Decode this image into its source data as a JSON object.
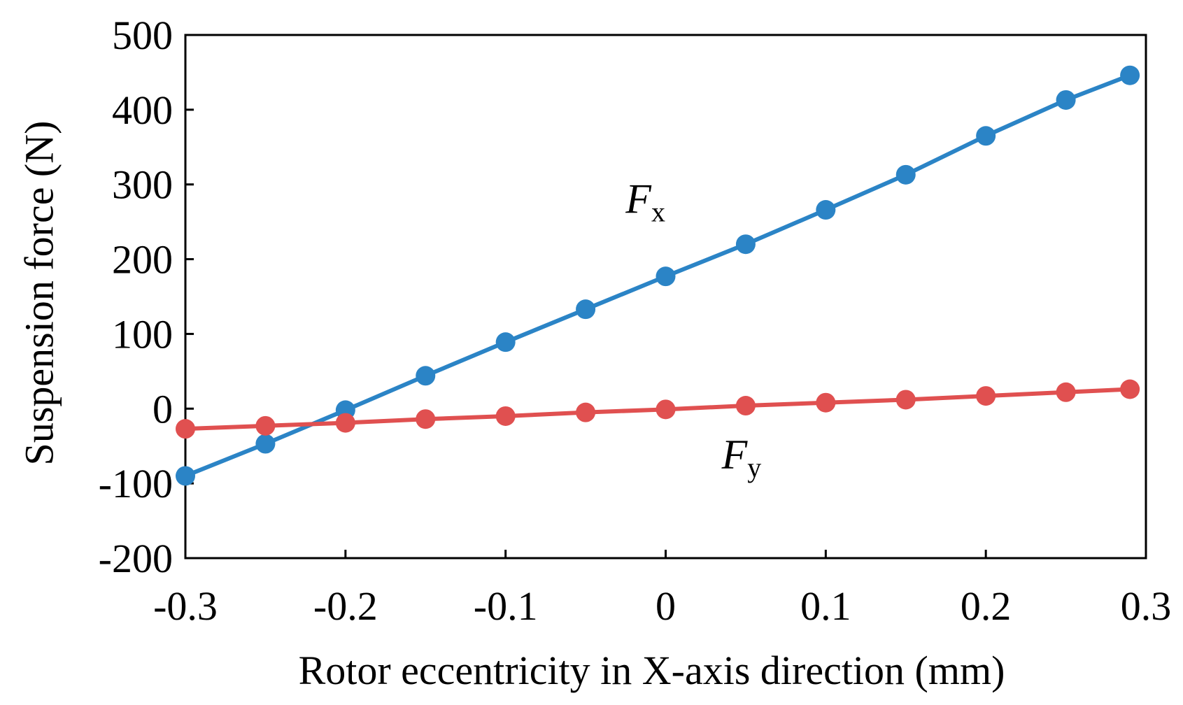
{
  "chart_data": {
    "type": "line",
    "xlabel": "Rotor eccentricity in X-axis direction (mm)",
    "ylabel": "Suspension force (N)",
    "xlim": [
      -0.3,
      0.3
    ],
    "ylim": [
      -200,
      500
    ],
    "xticks": [
      "-0.3",
      "-0.2",
      "-0.1",
      "0",
      "0.1",
      "0.2",
      "0.3"
    ],
    "yticks": [
      "-200",
      "-100",
      "0",
      "100",
      "200",
      "300",
      "400",
      "500"
    ],
    "grid": false,
    "legend": "none",
    "series": [
      {
        "name": "F",
        "subscript": "x",
        "color": "#2b84c6",
        "x": [
          -0.3,
          -0.25,
          -0.2,
          -0.15,
          -0.1,
          -0.05,
          0,
          0.05,
          0.1,
          0.15,
          0.2,
          0.25,
          0.29
        ],
        "y": [
          -90,
          -47,
          -2,
          44,
          89,
          133,
          177,
          220,
          266,
          313,
          365,
          413,
          446
        ]
      },
      {
        "name": "F",
        "subscript": "y",
        "color": "#e05050",
        "x": [
          -0.3,
          -0.25,
          -0.2,
          -0.15,
          -0.1,
          -0.05,
          0,
          0.05,
          0.1,
          0.15,
          0.2,
          0.25,
          0.29
        ],
        "y": [
          -27,
          -23,
          -19,
          -14,
          -10,
          -5,
          -1,
          4,
          8,
          12,
          17,
          22,
          26
        ]
      }
    ]
  }
}
